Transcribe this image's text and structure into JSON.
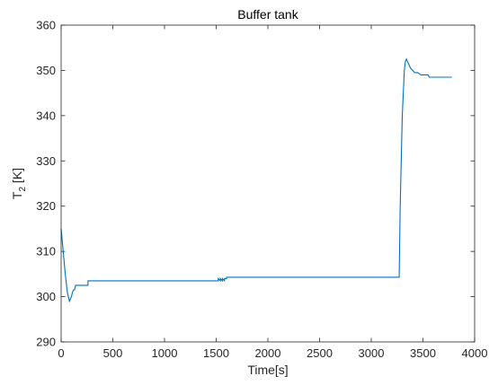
{
  "chart_data": {
    "type": "line",
    "title": "Buffer tank",
    "xlabel": "Time[s]",
    "ylabel_main": "T",
    "ylabel_sub": "2",
    "ylabel_unit": " [K]",
    "xlim": [
      0,
      4000
    ],
    "ylim": [
      290,
      360
    ],
    "xticks": [
      0,
      500,
      1000,
      1500,
      2000,
      2500,
      3000,
      3500,
      4000
    ],
    "yticks": [
      290,
      300,
      310,
      320,
      330,
      340,
      350,
      360
    ],
    "grid": false,
    "line_color": "#0072BD",
    "series": [
      {
        "x": [
          0,
          20,
          40,
          60,
          80,
          100,
          110,
          120,
          130,
          140,
          150,
          160,
          260,
          260,
          270,
          1520,
          1520,
          1540,
          1540,
          1560,
          1560,
          1580,
          1580,
          1600,
          1600,
          1620,
          3270,
          3280,
          3300,
          3320,
          3330,
          3340,
          3360,
          3380,
          3400,
          3420,
          3450,
          3480,
          3500,
          3530,
          3550,
          3560,
          3600,
          3650,
          3700,
          3780
        ],
        "y": [
          315,
          310,
          305,
          301,
          299,
          300,
          301,
          301.5,
          301.5,
          302.5,
          302.5,
          302.5,
          302.5,
          303.5,
          303.5,
          303.5,
          304,
          303.5,
          304,
          303.5,
          304,
          303.5,
          304,
          304,
          304.3,
          304.3,
          304.3,
          320,
          340,
          350,
          352,
          352.5,
          351.5,
          350.5,
          350,
          349.5,
          349.5,
          349,
          349,
          349,
          349,
          348.5,
          348.5,
          348.5,
          348.5,
          348.5
        ]
      }
    ]
  }
}
